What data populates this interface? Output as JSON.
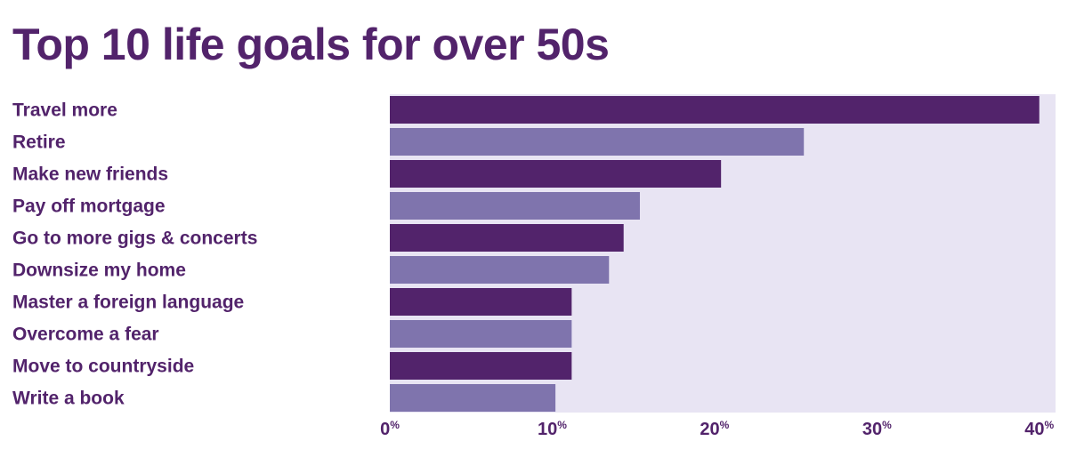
{
  "chart_data": {
    "type": "bar",
    "orientation": "horizontal",
    "title": "Top 10 life goals for over 50s",
    "categories": [
      "Travel more",
      "Retire",
      "Make new friends",
      "Pay off mortgage",
      "Go to more gigs & concerts",
      "Downsize my home",
      "Master a foreign language",
      "Overcome a fear",
      "Move to countryside",
      "Write a book"
    ],
    "values": [
      40,
      25.5,
      20.4,
      15.4,
      14.4,
      13.5,
      11.2,
      11.2,
      11.2,
      10.2
    ],
    "unit": "%",
    "xlim": [
      0,
      41
    ],
    "xticks": [
      {
        "value": 0,
        "num": "0",
        "suffix": "%"
      },
      {
        "value": 10,
        "num": "10",
        "suffix": "%"
      },
      {
        "value": 20,
        "num": "20",
        "suffix": "%"
      },
      {
        "value": 30,
        "num": "30",
        "suffix": "%"
      },
      {
        "value": 40,
        "num": "40",
        "suffix": "%"
      }
    ],
    "grid": false,
    "legend": "none",
    "colors": {
      "text": "#52236b",
      "bar_dark": "#52236b",
      "bar_light": "#7f74ad",
      "plot_background": "#e8e4f3"
    }
  }
}
